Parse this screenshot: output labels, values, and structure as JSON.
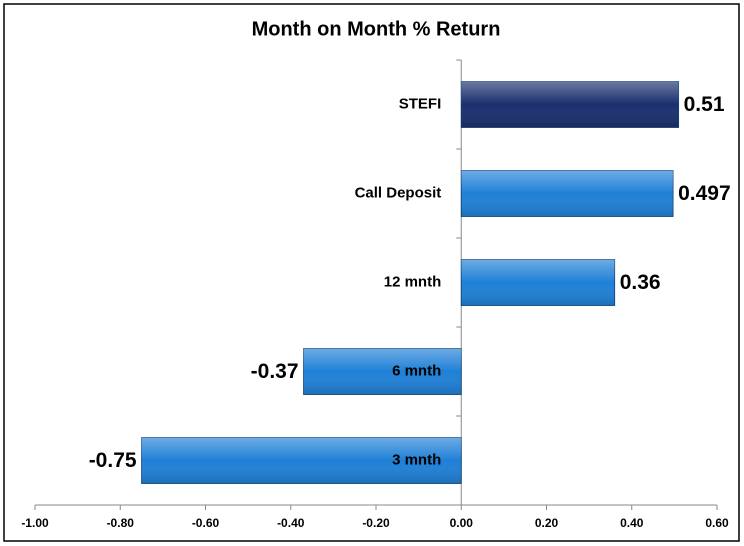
{
  "chart_data": {
    "type": "barh",
    "title": "Month on Month % Return",
    "categories": [
      "STEFI",
      "Call Deposit",
      "12 mnth",
      "6 mnth",
      "3 mnth"
    ],
    "values": [
      0.51,
      0.497,
      0.36,
      -0.37,
      -0.75
    ],
    "colors": [
      "#1b2f6e",
      "#1f80d6",
      "#1f80d6",
      "#1f80d6",
      "#1f80d6"
    ],
    "xlim": [
      -1,
      0.6
    ],
    "xticks": [
      {
        "value": -1,
        "label": "-1.00"
      },
      {
        "value": -0.8,
        "label": "-0.80"
      },
      {
        "value": -0.6,
        "label": "-0.60"
      },
      {
        "value": -0.4,
        "label": "-0.40"
      },
      {
        "value": -0.2,
        "label": "-0.20"
      },
      {
        "value": 0,
        "label": "0.00"
      },
      {
        "value": 0.2,
        "label": "0.20"
      },
      {
        "value": 0.4,
        "label": "0.40"
      },
      {
        "value": 0.6,
        "label": "0.60"
      }
    ],
    "grid": false
  }
}
